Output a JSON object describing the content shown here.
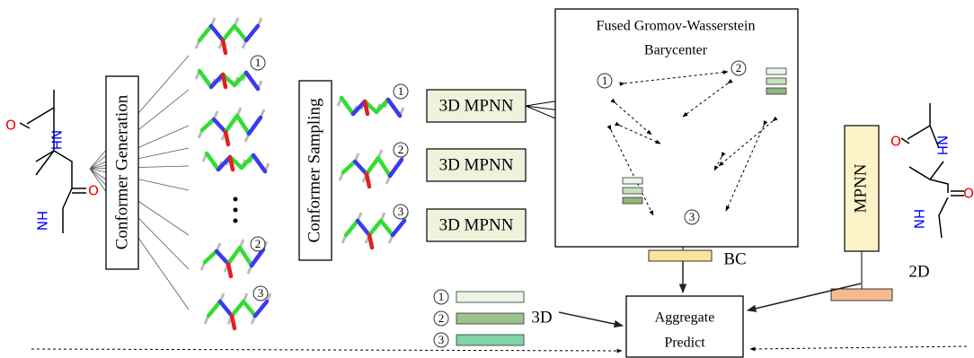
{
  "left_molecule": {
    "atoms": [
      "O",
      "NH",
      "O",
      "HN"
    ]
  },
  "conformer_generation": {
    "label": "Conformer Generation"
  },
  "conformer_sampling": {
    "label": "Conformer Sampling"
  },
  "markers": [
    "1",
    "2",
    "3"
  ],
  "encoders": [
    "3D MPNN",
    "3D MPNN",
    "3D MPNN"
  ],
  "barycenter": {
    "title_lines": [
      "Fused Gromov-Wasserstein",
      "Barycenter"
    ],
    "output": "BC"
  },
  "embeddings_3d": {
    "label": "3D"
  },
  "mpnn_2d": {
    "label": "MPNN",
    "output": "2D"
  },
  "aggregate": {
    "lines": [
      "Aggregate",
      "Predict"
    ]
  },
  "right_molecule": {
    "atoms": [
      "O",
      "NH",
      "O",
      "HN"
    ]
  }
}
